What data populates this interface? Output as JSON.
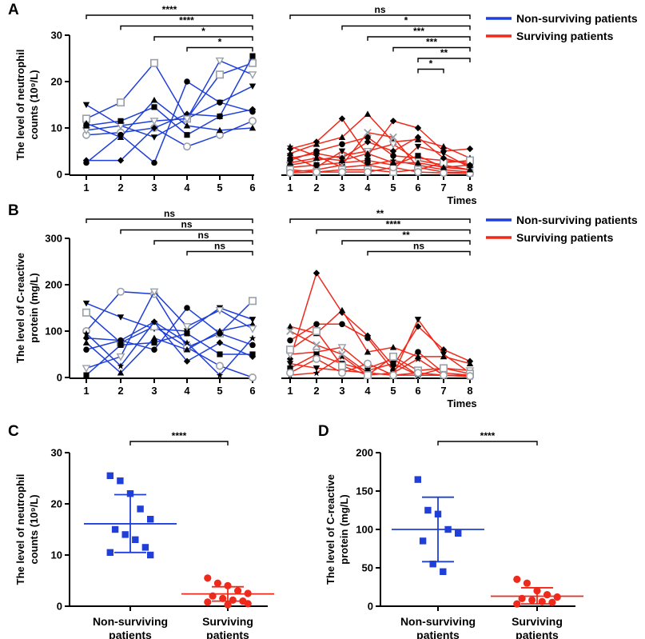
{
  "chart_data": [
    {
      "panel": "A",
      "type": "line",
      "ylabel_lines": [
        "The level of neutrophil",
        "counts (10⁹/L)"
      ],
      "yticks": [
        0,
        10,
        20,
        30
      ],
      "ylim": [
        0,
        30
      ],
      "xlabel": "Times",
      "legend": [
        {
          "name": "Non-surviving patients",
          "color": "#1f3fd8"
        },
        {
          "name": "Surviving patients",
          "color": "#ee2a1c"
        }
      ],
      "groups": [
        {
          "name": "Non-surviving patients",
          "color": "#1f3fd8",
          "x": [
            1,
            2,
            3,
            4,
            5,
            6
          ],
          "series": [
            {
              "values": [
                15.0,
                10.5,
                8.0,
                12.0,
                15.5,
                19.0
              ]
            },
            {
              "values": [
                12.0,
                15.5,
                24.0,
                12.0,
                21.5,
                24.0
              ]
            },
            {
              "values": [
                8.5,
                9.0,
                10.0,
                6.0,
                8.5,
                11.5
              ]
            },
            {
              "values": [
                3.0,
                3.0,
                10.0,
                13.0,
                12.5,
                14.0
              ]
            },
            {
              "values": [
                11.0,
                8.0,
                16.0,
                10.5,
                9.5,
                10.0
              ]
            },
            {
              "values": [
                2.5,
                8.5,
                2.5,
                20.0,
                15.5,
                13.5
              ]
            },
            {
              "values": [
                9.5,
                10.5,
                11.5,
                12.0,
                24.5,
                21.5
              ]
            },
            {
              "values": [
                10.5,
                11.5,
                14.5,
                8.5,
                12.5,
                25.5
              ]
            }
          ],
          "comparisons": [
            {
              "from": 1,
              "to": 6,
              "label": "****"
            },
            {
              "from": 2,
              "to": 6,
              "label": "****"
            },
            {
              "from": 3,
              "to": 6,
              "label": "*"
            },
            {
              "from": 4,
              "to": 6,
              "label": "*"
            }
          ]
        },
        {
          "name": "Surviving patients",
          "color": "#ee2a1c",
          "x": [
            1,
            2,
            3,
            4,
            5,
            6,
            7,
            8
          ],
          "series": [
            {
              "values": [
                5.5,
                7.0,
                12.0,
                4.0,
                11.5,
                10.0,
                5.0,
                5.5
              ]
            },
            {
              "values": [
                4.5,
                6.5,
                8.0,
                13.0,
                7.0,
                7.5,
                6.0,
                3.5
              ]
            },
            {
              "values": [
                3.0,
                5.0,
                6.5,
                8.0,
                4.0,
                3.5,
                3.0,
                2.5
              ]
            },
            {
              "values": [
                2.0,
                3.0,
                4.0,
                5.0,
                6.5,
                3.0,
                2.0,
                1.0
              ]
            },
            {
              "values": [
                1.5,
                2.0,
                2.5,
                3.0,
                2.0,
                4.0,
                1.5,
                2.0
              ]
            },
            {
              "values": [
                6.0,
                4.0,
                1.5,
                2.0,
                3.0,
                2.0,
                1.0,
                0.5
              ]
            },
            {
              "values": [
                0.5,
                1.0,
                2.0,
                9.0,
                8.0,
                1.5,
                0.5,
                0.3
              ]
            },
            {
              "values": [
                4.0,
                1.5,
                5.0,
                2.0,
                1.0,
                6.0,
                4.5,
                1.5
              ]
            },
            {
              "values": [
                1.0,
                0.5,
                1.0,
                1.0,
                0.5,
                1.0,
                2.5,
                3.0
              ]
            },
            {
              "values": [
                0.3,
                0.5,
                0.5,
                0.5,
                1.5,
                0.5,
                0.3,
                0.2
              ]
            },
            {
              "values": [
                3.5,
                4.5,
                3.5,
                7.0,
                5.0,
                8.0,
                3.5,
                2.0
              ]
            },
            {
              "values": [
                2.5,
                3.5,
                3.0,
                4.5,
                2.5,
                2.5,
                1.5,
                1.0
              ]
            }
          ],
          "comparisons": [
            {
              "from": 1,
              "to": 8,
              "label": "ns"
            },
            {
              "from": 3,
              "to": 8,
              "label": "*"
            },
            {
              "from": 4,
              "to": 8,
              "label": "***"
            },
            {
              "from": 5,
              "to": 8,
              "label": "***"
            },
            {
              "from": 6,
              "to": 8,
              "label": "**"
            },
            {
              "from": 6,
              "to": 7,
              "label": "*"
            }
          ]
        }
      ]
    },
    {
      "panel": "B",
      "type": "line",
      "ylabel_lines": [
        "The level of C-reactive",
        "protein (mg/L)"
      ],
      "yticks": [
        0,
        100,
        200,
        300
      ],
      "ylim": [
        0,
        300
      ],
      "xlabel": "Times",
      "legend": [
        {
          "name": "Non-surviving patients",
          "color": "#1f3fd8"
        },
        {
          "name": "Surviving patients",
          "color": "#ee2a1c"
        }
      ],
      "groups": [
        {
          "name": "Non-surviving patients",
          "color": "#1f3fd8",
          "x": [
            1,
            2,
            3,
            4,
            5,
            6
          ],
          "series": [
            {
              "values": [
                160,
                130,
                105,
                100,
                150,
                125
              ]
            },
            {
              "values": [
                140,
                75,
                110,
                65,
                95,
                165
              ]
            },
            {
              "values": [
                100,
                185,
                180,
                65,
                25,
                0
              ]
            },
            {
              "values": [
                85,
                80,
                120,
                35,
                75,
                45
              ]
            },
            {
              "values": [
                75,
                10,
                85,
                60,
                100,
                115
              ]
            },
            {
              "values": [
                60,
                80,
                60,
                150,
                95,
                70
              ]
            },
            {
              "values": [
                20,
                45,
                185,
                110,
                145,
                105
              ]
            },
            {
              "values": [
                5,
                70,
                75,
                95,
                50,
                50
              ]
            },
            {
              "values": [
                95,
                25,
                120,
                75,
                5,
                85
              ]
            }
          ],
          "comparisons": [
            {
              "from": 1,
              "to": 6,
              "label": "ns"
            },
            {
              "from": 2,
              "to": 6,
              "label": "ns"
            },
            {
              "from": 3,
              "to": 6,
              "label": "ns"
            },
            {
              "from": 4,
              "to": 6,
              "label": "ns"
            }
          ]
        },
        {
          "name": "Surviving patients",
          "color": "#ee2a1c",
          "x": [
            1,
            2,
            3,
            4,
            5,
            6,
            7,
            8
          ],
          "series": [
            {
              "values": [
                40,
                225,
                140,
                90,
                25,
                110,
                60,
                35
              ]
            },
            {
              "values": [
                110,
                95,
                145,
                55,
                65,
                45,
                45,
                30
              ]
            },
            {
              "values": [
                80,
                115,
                115,
                85,
                15,
                55,
                10,
                5
              ]
            },
            {
              "values": [
                50,
                55,
                65,
                20,
                40,
                5,
                20,
                15
              ]
            },
            {
              "values": [
                20,
                50,
                30,
                15,
                30,
                5,
                5,
                2
              ]
            },
            {
              "values": [
                5,
                10,
                45,
                5,
                10,
                40,
                5,
                2
              ]
            },
            {
              "values": [
                100,
                70,
                50,
                10,
                5,
                5,
                5,
                5
              ]
            },
            {
              "values": [
                30,
                20,
                15,
                10,
                5,
                125,
                50,
                10
              ]
            },
            {
              "values": [
                60,
                100,
                25,
                5,
                45,
                15,
                20,
                8
              ]
            },
            {
              "values": [
                10,
                40,
                10,
                30,
                5,
                10,
                5,
                3
              ]
            }
          ],
          "comparisons": [
            {
              "from": 1,
              "to": 8,
              "label": "**"
            },
            {
              "from": 2,
              "to": 8,
              "label": "****"
            },
            {
              "from": 3,
              "to": 8,
              "label": "**"
            },
            {
              "from": 4,
              "to": 8,
              "label": "ns"
            }
          ]
        }
      ]
    },
    {
      "panel": "C",
      "type": "scatter",
      "ylabel_lines": [
        "The level of neutrophil",
        "counts (10⁹/L)"
      ],
      "yticks": [
        0,
        10,
        20,
        30
      ],
      "ylim": [
        0,
        30
      ],
      "categories": [
        [
          "Non-surviving",
          "patients"
        ],
        [
          "Surviving",
          "patients"
        ]
      ],
      "groups": [
        {
          "color": "#1f3fd8",
          "marker": "square",
          "mean": 16.1,
          "sd_low": 10.5,
          "sd_high": 21.8,
          "points": [
            25.5,
            24.5,
            22.0,
            19.0,
            17.0,
            15.0,
            14.0,
            13.0,
            11.5,
            10.5,
            10.0
          ]
        },
        {
          "color": "#ee2a1c",
          "marker": "circle",
          "mean": 2.4,
          "sd_low": 1.0,
          "sd_high": 3.8,
          "points": [
            5.5,
            4.5,
            4.0,
            3.0,
            2.5,
            2.0,
            1.5,
            1.2,
            1.0,
            0.8,
            0.5,
            0.3
          ]
        }
      ],
      "comparison": {
        "label": "****"
      }
    },
    {
      "panel": "D",
      "type": "scatter",
      "ylabel_lines": [
        "The level of C-reactive",
        "protein (mg/L)"
      ],
      "yticks": [
        0,
        50,
        100,
        150,
        200
      ],
      "ylim": [
        0,
        200
      ],
      "categories": [
        [
          "Non-surviving",
          "patients"
        ],
        [
          "Surviving",
          "patients"
        ]
      ],
      "groups": [
        {
          "color": "#1f3fd8",
          "marker": "square",
          "mean": 100,
          "sd_low": 58,
          "sd_high": 142,
          "points": [
            165,
            125,
            120,
            100,
            95,
            85,
            55,
            45
          ]
        },
        {
          "color": "#ee2a1c",
          "marker": "circle",
          "mean": 13,
          "sd_low": 3,
          "sd_high": 24,
          "points": [
            35,
            30,
            20,
            15,
            12,
            10,
            8,
            6,
            5,
            3
          ]
        }
      ],
      "comparison": {
        "label": "****"
      }
    }
  ]
}
